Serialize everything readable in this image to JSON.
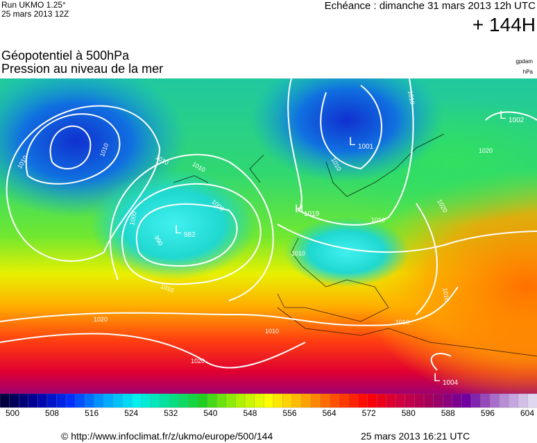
{
  "header": {
    "run": "Run UKMO 1.25°",
    "run_date": "25 mars 2013 12Z",
    "forecast": "Echéance : dimanche 31 mars 2013 12h UTC",
    "lead": "+ 144H"
  },
  "titles": [
    "Géopotentiel à 500hPa",
    "Pression au niveau de la mer"
  ],
  "units": [
    "gpdam",
    "hPa"
  ],
  "map": {
    "centers": [
      {
        "letter": "L",
        "value": 982
      },
      {
        "letter": "H",
        "value": 1019
      },
      {
        "letter": "L",
        "value": 1001
      },
      {
        "letter": "L",
        "value": 1002
      },
      {
        "letter": "L",
        "value": 1004
      }
    ],
    "isobar_labels": [
      1010,
      1010,
      1010,
      1010,
      1000,
      1000,
      990,
      1010,
      1010,
      1010,
      1010,
      1010,
      1020,
      1020,
      1010,
      1010,
      1010,
      1020,
      1020
    ]
  },
  "colorbar": {
    "ticks": [
      500,
      508,
      516,
      524,
      532,
      540,
      548,
      556,
      564,
      572,
      580,
      588,
      596,
      604
    ]
  },
  "footer": {
    "url": "© http://www.infoclimat.fr/z/ukmo/europe/500/144",
    "timestamp": "25 mars 2013 16:21 UTC"
  }
}
